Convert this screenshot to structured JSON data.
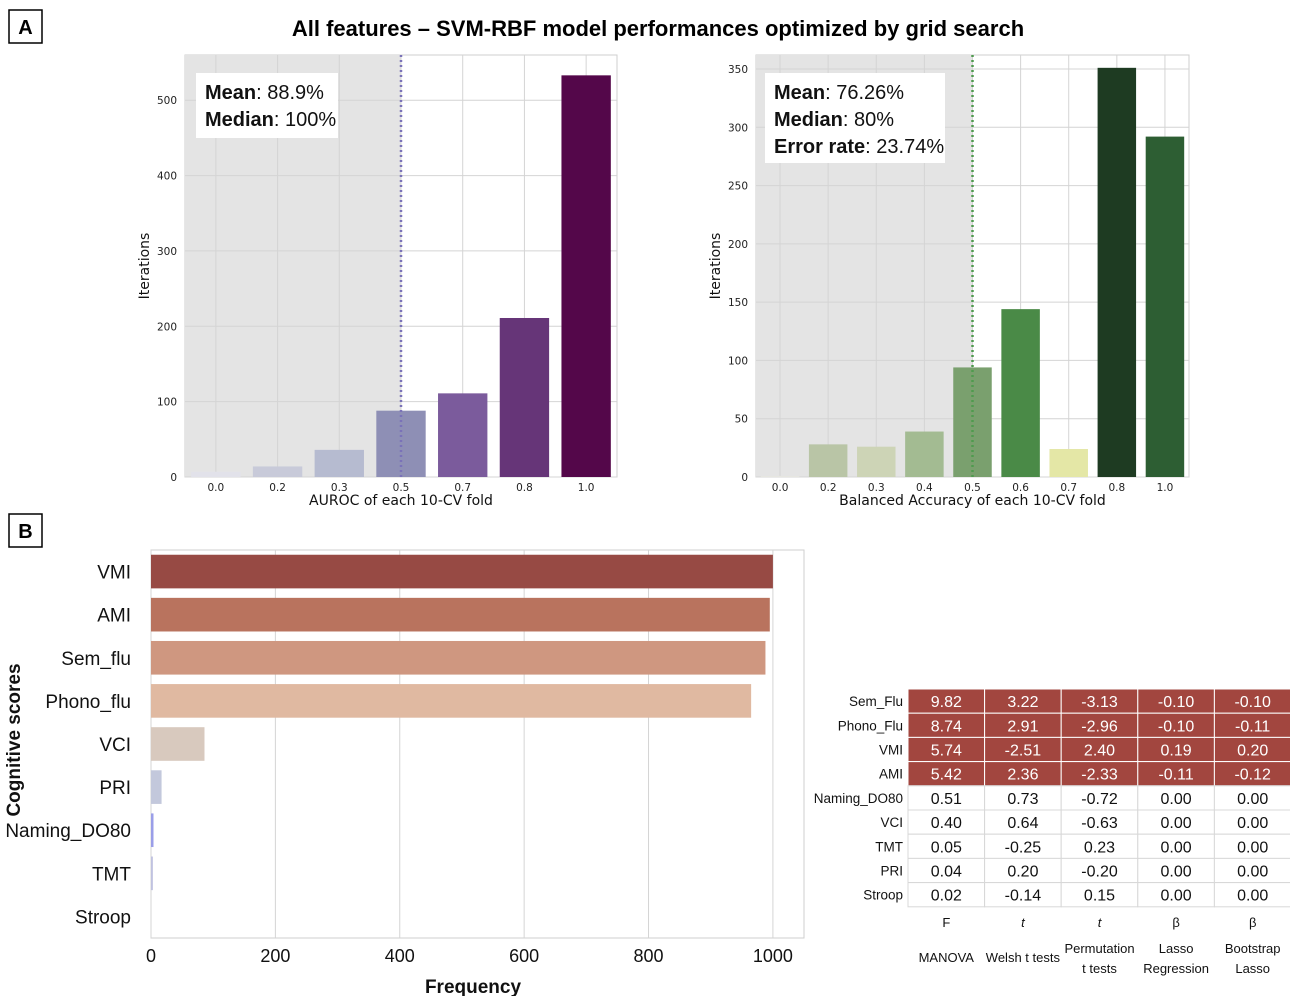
{
  "title": "All features – SVM-RBF model performances optimized by grid search",
  "panel_a_label": "A",
  "panel_b_label": "B",
  "colors": {
    "shade": "#e4e4e4",
    "grid": "#d4d4d4",
    "auroc_line": "#7a72b8",
    "bacc_line": "#4f9a4f",
    "high_cell": "#a2463f"
  },
  "chart_data": [
    {
      "type": "bar",
      "id": "auroc",
      "categories": [
        "0.0",
        "0.2",
        "0.3",
        "0.5",
        "0.7",
        "0.8",
        "1.0"
      ],
      "values": [
        7,
        14,
        36,
        88,
        111,
        211,
        533
      ],
      "colors": [
        "#e2e2ea",
        "#c8cad9",
        "#b6bbd0",
        "#8e8fb5",
        "#7b5b9c",
        "#663578",
        "#54074a"
      ],
      "xlabel": "AUROC of each 10-CV fold",
      "ylabel": "Iterations",
      "yticks": [
        0,
        100,
        200,
        300,
        400,
        500
      ],
      "ylim": [
        0,
        560
      ],
      "chance_line": "0.5",
      "grid": true,
      "stats": [
        {
          "label": "Mean",
          "value": ": 88.9%"
        },
        {
          "label": "Median",
          "value": ": 100%"
        }
      ]
    },
    {
      "type": "bar",
      "id": "balanced_accuracy",
      "categories": [
        "0.0",
        "0.2",
        "0.3",
        "0.4",
        "0.5",
        "0.6",
        "0.7",
        "0.8",
        "1.0"
      ],
      "values": [
        1,
        28,
        26,
        39,
        94,
        144,
        24,
        351,
        292
      ],
      "colors": [
        "#e6e6e0",
        "#b9c5a6",
        "#cdd4b6",
        "#a3bb92",
        "#7aa06e",
        "#4a8a47",
        "#e4e7a6",
        "#1e3b22",
        "#2d5e33"
      ],
      "xlabel": "Balanced Accuracy of each 10-CV fold",
      "ylabel": "Iterations",
      "yticks": [
        0,
        50,
        100,
        150,
        200,
        250,
        300,
        350
      ],
      "ylim": [
        0,
        362
      ],
      "chance_line": "0.5",
      "grid": true,
      "stats": [
        {
          "label": "Mean",
          "value": ": 76.26%"
        },
        {
          "label": "Median",
          "value": ": 80%"
        },
        {
          "label": "Error rate",
          "value": ": 23.74%"
        }
      ]
    },
    {
      "type": "bar",
      "id": "feature_frequency",
      "orientation": "horizontal",
      "categories": [
        "VMI",
        "AMI",
        "Sem_flu",
        "Phono_flu",
        "VCI",
        "PRI",
        "Naming_DO80",
        "TMT",
        "Stroop"
      ],
      "values": [
        1000,
        995,
        988,
        965,
        86,
        17,
        4,
        3,
        0
      ],
      "colors": [
        "#974a44",
        "#b9735e",
        "#cf9780",
        "#e0b9a1",
        "#d8c9be",
        "#c3c8dc",
        "#9a9ee8",
        "#c0c2e0",
        "#e6e6ee"
      ],
      "xlabel": "Frequency",
      "ylabel": "Cognitive scores",
      "xticks": [
        0,
        200,
        400,
        600,
        800,
        1000
      ],
      "xlim": [
        0,
        1050
      ],
      "grid": true
    },
    {
      "type": "table",
      "id": "statistics_table",
      "rows": [
        "Sem_Flu",
        "Phono_Flu",
        "VMI",
        "AMI",
        "Naming_DO80",
        "VCI",
        "TMT",
        "PRI",
        "Stroop"
      ],
      "highlighted_rows": 4,
      "cells": [
        [
          "9.82",
          "3.22",
          "-3.13",
          "-0.10",
          "-0.10"
        ],
        [
          "8.74",
          "2.91",
          "-2.96",
          "-0.10",
          "-0.11"
        ],
        [
          "5.74",
          "-2.51",
          "2.40",
          "0.19",
          "0.20"
        ],
        [
          "5.42",
          "2.36",
          "-2.33",
          "-0.11",
          "-0.12"
        ],
        [
          "0.51",
          "0.73",
          "-0.72",
          "0.00",
          "0.00"
        ],
        [
          "0.40",
          "0.64",
          "-0.63",
          "0.00",
          "0.00"
        ],
        [
          "0.05",
          "-0.25",
          "0.23",
          "0.00",
          "0.00"
        ],
        [
          "0.04",
          "0.20",
          "-0.20",
          "0.00",
          "0.00"
        ],
        [
          "0.02",
          "-0.14",
          "0.15",
          "0.00",
          "0.00"
        ]
      ],
      "columns": [
        {
          "symbol": "F",
          "lines": [
            "MANOVA"
          ]
        },
        {
          "symbol": "t",
          "lines": [
            "Welsh t tests"
          ]
        },
        {
          "symbol": "t",
          "lines": [
            "Permutation",
            "t tests"
          ]
        },
        {
          "symbol": "β",
          "lines": [
            "Lasso",
            "Regression"
          ]
        },
        {
          "symbol": "β",
          "lines": [
            "Bootstrap",
            "Lasso"
          ]
        }
      ]
    }
  ]
}
